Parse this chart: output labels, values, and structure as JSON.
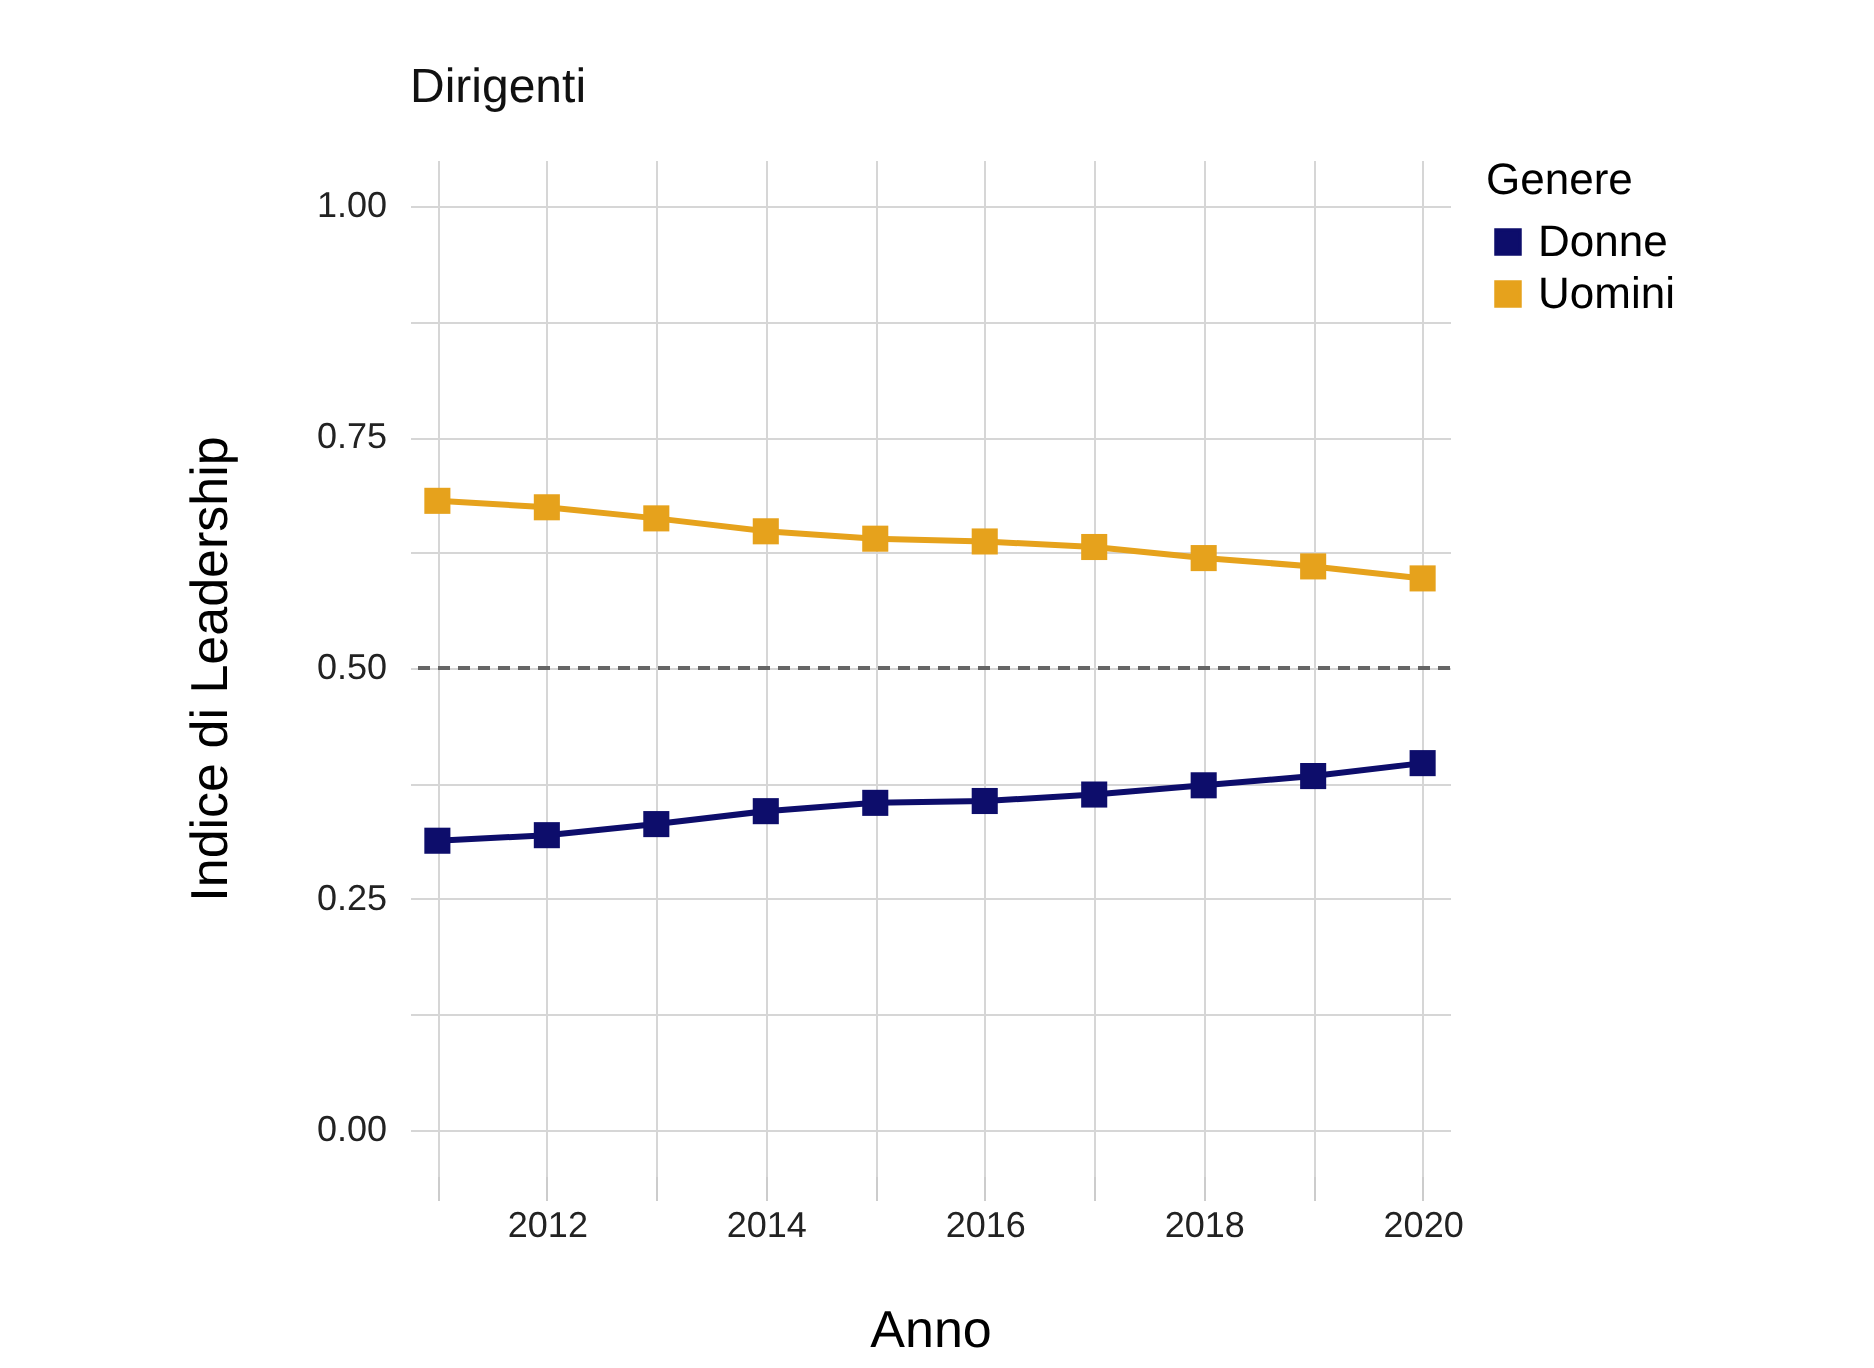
{
  "chart_data": {
    "type": "line",
    "title": "Dirigenti",
    "xlabel": "Anno",
    "ylabel": "Indice di Leadership",
    "legend_title": "Genere",
    "legend": "right",
    "grid": true,
    "marker": "square",
    "line_style": "solid",
    "x": [
      2011,
      2012,
      2013,
      2014,
      2015,
      2016,
      2017,
      2018,
      2019,
      2020
    ],
    "xlim": [
      2010.75,
      2020.25
    ],
    "xticks": [
      {
        "value": 2011,
        "label": null
      },
      2012,
      {
        "value": 2013,
        "label": null
      },
      2014,
      {
        "value": 2015,
        "label": null
      },
      2016,
      {
        "value": 2017,
        "label": null
      },
      2018,
      {
        "value": 2019,
        "label": null
      },
      2020
    ],
    "ylim": [
      -0.05,
      1.05
    ],
    "yticks": [
      {
        "value": 0,
        "label": "0.00"
      },
      {
        "value": 0.125,
        "label": null
      },
      {
        "value": 0.25,
        "label": "0.25"
      },
      {
        "value": 0.375,
        "label": null
      },
      {
        "value": 0.5,
        "label": "0.50"
      },
      {
        "value": 0.625,
        "label": null
      },
      {
        "value": 0.75,
        "label": "0.75"
      },
      {
        "value": 0.875,
        "label": null
      },
      {
        "value": 1,
        "label": "1.00"
      }
    ],
    "ref_lines": [
      {
        "axis": "y",
        "value": 0.5,
        "color": "#666666",
        "line_style": "dashed"
      }
    ],
    "series": [
      {
        "name": "Donne",
        "color": "#0d0d6b",
        "values": [
          0.313,
          0.319,
          0.331,
          0.345,
          0.354,
          0.356,
          0.363,
          0.373,
          0.383,
          0.397
        ]
      },
      {
        "name": "Uomini",
        "color": "#e6a21c",
        "values": [
          0.681,
          0.674,
          0.662,
          0.648,
          0.64,
          0.637,
          0.631,
          0.619,
          0.61,
          0.597
        ]
      }
    ]
  }
}
